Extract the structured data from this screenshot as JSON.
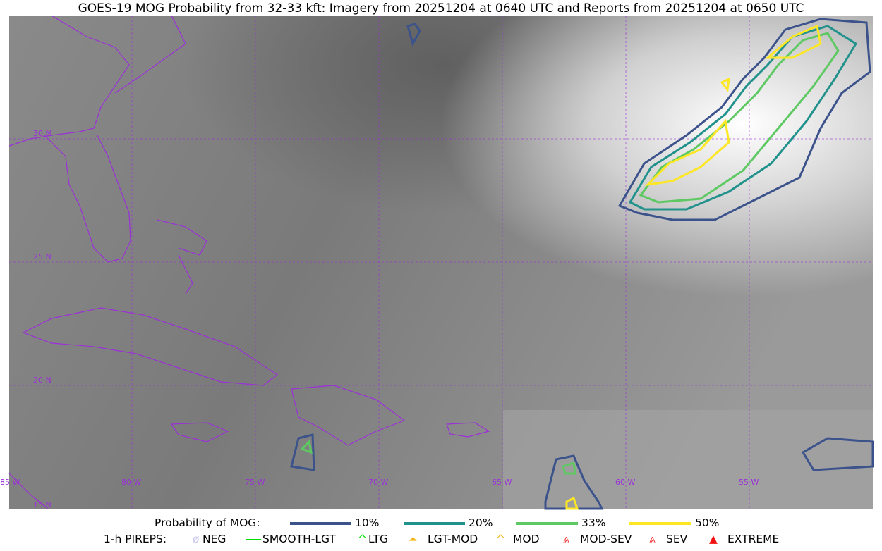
{
  "title": "GOES-19 MOG Probability from 32-33 kft: Imagery from 20251204 at 0640 UTC and Reports from 20251204 at 0650 UTC",
  "map": {
    "lon_labels": [
      "85 W",
      "80 W",
      "75 W",
      "70 W",
      "65 W",
      "60 W",
      "55 W"
    ],
    "lat_labels": [
      "30 N",
      "25 N",
      "20 N",
      "15 N"
    ],
    "grid_color": "#9b30d9",
    "coast_color": "#9b30d9"
  },
  "legend": {
    "prob_label": "Probability of MOG:",
    "levels": [
      {
        "label": "10%",
        "color": "#3b528b"
      },
      {
        "label": "20%",
        "color": "#21918c"
      },
      {
        "label": "33%",
        "color": "#5ec962"
      },
      {
        "label": "50%",
        "color": "#fde725"
      }
    ],
    "pirep_label": "1-h PIREPS:",
    "pireps": [
      {
        "label": "NEG",
        "color": "#c8c8f0",
        "icon": "neg-icon"
      },
      {
        "label": "SMOOTH-LGT",
        "color": "#00e000",
        "icon": "line-icon"
      },
      {
        "label": "LTG",
        "color": "#00e000",
        "icon": "caret-icon"
      },
      {
        "label": "LGT-MOD",
        "color": "#f5b820",
        "icon": "caret-bar-icon"
      },
      {
        "label": "MOD",
        "color": "#f5b820",
        "icon": "caret-icon"
      },
      {
        "label": "MOD-SEV",
        "color": "#f03030",
        "icon": "double-caret-bar-icon"
      },
      {
        "label": "SEV",
        "color": "#f03030",
        "icon": "double-caret-icon"
      },
      {
        "label": "EXTREME",
        "color": "#f01010",
        "icon": "filled-triangle-icon"
      }
    ]
  }
}
